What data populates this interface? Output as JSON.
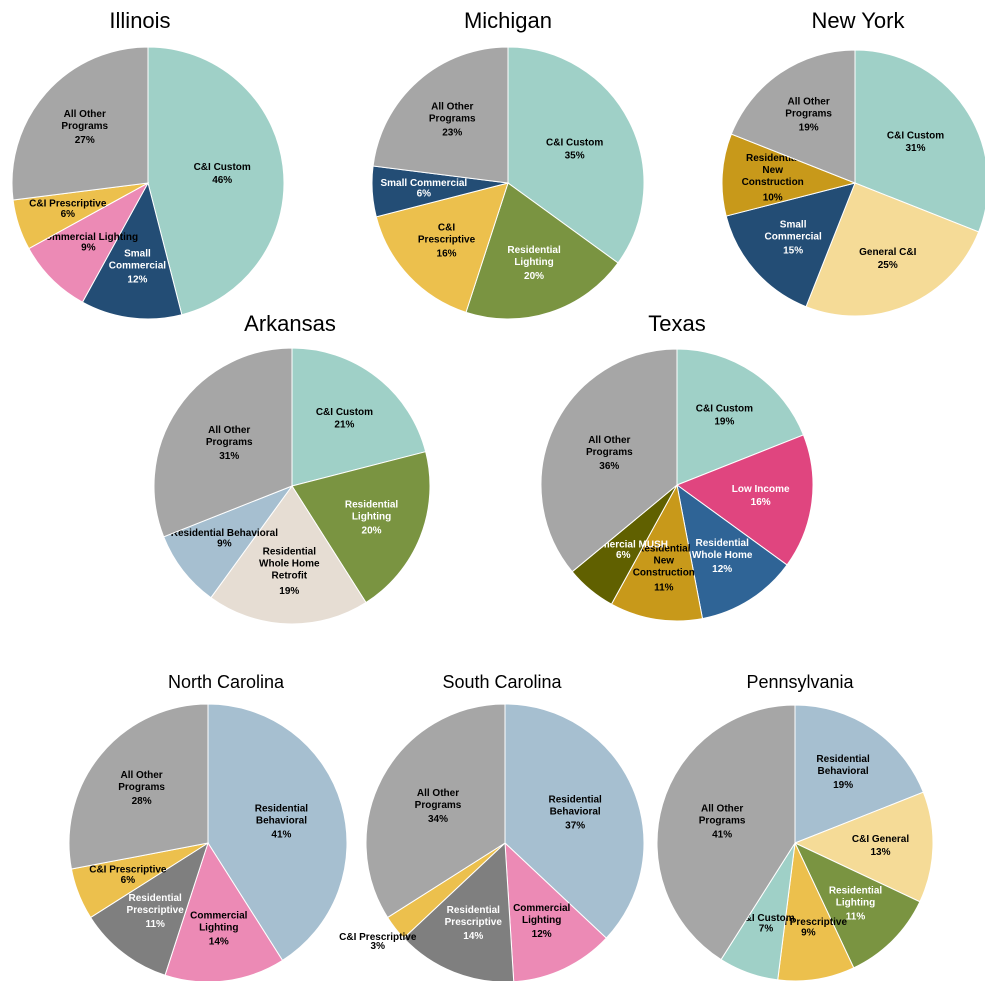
{
  "chart_data": [
    {
      "type": "pie",
      "title": "Illinois",
      "categories": [
        "C&I Custom",
        "Small Commercial",
        "Commercial Lighting",
        "C&I Prescriptive",
        "All Other Programs"
      ],
      "values": [
        46,
        12,
        9,
        6,
        27
      ],
      "value_labels": [
        "46%",
        "12%",
        "9%",
        "6%",
        "27%"
      ],
      "colors": [
        "#9fd0c7",
        "#234d75",
        "#ec8ab5",
        "#ecc04d",
        "#a6a6a6"
      ]
    },
    {
      "type": "pie",
      "title": "Michigan",
      "categories": [
        "C&I Custom",
        "Residential Lighting",
        "C&I Prescriptive",
        "Small Commercial",
        "All Other Programs"
      ],
      "values": [
        35,
        20,
        16,
        6,
        23
      ],
      "value_labels": [
        "35%",
        "20%",
        "16%",
        "6%",
        "23%"
      ],
      "colors": [
        "#9fd0c7",
        "#7a9441",
        "#ecc04d",
        "#234d75",
        "#a6a6a6"
      ]
    },
    {
      "type": "pie",
      "title": "New York",
      "categories": [
        "C&I Custom",
        "General C&I",
        "Small Commercial",
        "Residential New Construction",
        "All Other Programs"
      ],
      "values": [
        31,
        25,
        15,
        10,
        19
      ],
      "value_labels": [
        "31%",
        "25%",
        "15%",
        "10%",
        "19%"
      ],
      "colors": [
        "#9fd0c7",
        "#f5db97",
        "#234d75",
        "#c8991a",
        "#a6a6a6"
      ]
    },
    {
      "type": "pie",
      "title": "Arkansas",
      "categories": [
        "C&I Custom",
        "Residential Lighting",
        "Residential Whole Home Retrofit",
        "Residential Behavioral",
        "All Other Programs"
      ],
      "values": [
        21,
        20,
        19,
        9,
        31
      ],
      "value_labels": [
        "21%",
        "20%",
        "19%",
        "9%",
        "31%"
      ],
      "colors": [
        "#9fd0c7",
        "#7a9441",
        "#e6ddd3",
        "#a6bfd0",
        "#a6a6a6"
      ]
    },
    {
      "type": "pie",
      "title": "Texas",
      "categories": [
        "C&I Custom",
        "Low Income",
        "Residential Whole Home",
        "Residential New Construction",
        "Commercial MUSH",
        "All Other Programs"
      ],
      "values": [
        19,
        16,
        12,
        11,
        6,
        36
      ],
      "value_labels": [
        "19%",
        "16%",
        "12%",
        "11%",
        "6%",
        "36%"
      ],
      "colors": [
        "#9fd0c7",
        "#e0457f",
        "#2f6496",
        "#c8991a",
        "#606000",
        "#a6a6a6"
      ]
    },
    {
      "type": "pie",
      "title": "North Carolina",
      "categories": [
        "Residential Behavioral",
        "Commercial Lighting",
        "Residential Prescriptive",
        "C&I Prescriptive",
        "All Other Programs"
      ],
      "values": [
        41,
        14,
        11,
        6,
        28
      ],
      "value_labels": [
        "41%",
        "14%",
        "11%",
        "6%",
        "28%"
      ],
      "colors": [
        "#a6bfd0",
        "#ec8ab5",
        "#7f7f7f",
        "#ecc04d",
        "#a6a6a6"
      ]
    },
    {
      "type": "pie",
      "title": "South Carolina",
      "categories": [
        "Residential Behavioral",
        "Commercial Lighting",
        "Residential Prescriptive",
        "C&I Prescriptive",
        "All Other Programs"
      ],
      "values": [
        37,
        12,
        14,
        3,
        34
      ],
      "value_labels": [
        "37%",
        "12%",
        "14%",
        "3%",
        "34%"
      ],
      "colors": [
        "#a6bfd0",
        "#ec8ab5",
        "#7f7f7f",
        "#ecc04d",
        "#a6a6a6"
      ]
    },
    {
      "type": "pie",
      "title": "Pennsylvania",
      "categories": [
        "Residential Behavioral",
        "C&I General",
        "Residential Lighting",
        "C&I Prescriptive",
        "C&I Custom",
        "All Other Programs"
      ],
      "values": [
        19,
        13,
        11,
        9,
        7,
        41
      ],
      "value_labels": [
        "19%",
        "13%",
        "11%",
        "9%",
        "7%",
        "41%"
      ],
      "colors": [
        "#a6bfd0",
        "#f5db97",
        "#7a9441",
        "#ecc04d",
        "#9fd0c7",
        "#a6a6a6"
      ]
    }
  ]
}
